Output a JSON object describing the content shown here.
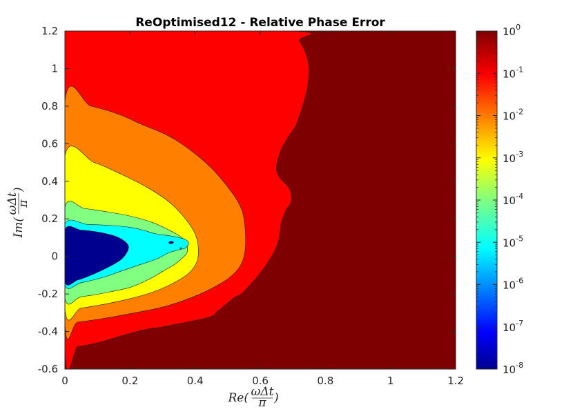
{
  "chart_data": {
    "type": "contour",
    "title": "ReOptimised12 - Relative Phase Error",
    "xlabel": {
      "base": "Re(",
      "numerator": "ωΔt",
      "denominator": "π",
      "close": ")"
    },
    "ylabel": {
      "base": "Im(",
      "numerator": "ωΔt",
      "denominator": "π",
      "close": ")"
    },
    "xlim": [
      0,
      1.2
    ],
    "ylim": [
      -0.6,
      1.2
    ],
    "x_ticks": [
      "0",
      "0.2",
      "0.4",
      "0.6",
      "0.8",
      "1",
      "1.2"
    ],
    "y_ticks": [
      "-0.6",
      "-0.4",
      "-0.2",
      "0",
      "0.2",
      "0.4",
      "0.6",
      "0.8",
      "1",
      "1.2"
    ],
    "colorbar": {
      "scale": "log",
      "range": [
        1e-08,
        1
      ],
      "tick_labels": [
        {
          "base": "10",
          "exp": "-8"
        },
        {
          "base": "10",
          "exp": "-7"
        },
        {
          "base": "10",
          "exp": "-6"
        },
        {
          "base": "10",
          "exp": "-5"
        },
        {
          "base": "10",
          "exp": "-4"
        },
        {
          "base": "10",
          "exp": "-3"
        },
        {
          "base": "10",
          "exp": "-2"
        },
        {
          "base": "10",
          "exp": "-1"
        },
        {
          "base": "10",
          "exp": "0"
        }
      ],
      "colormap": "jet"
    },
    "levels": [
      {
        "level": "1e-1 to 1",
        "color": "#7f0000",
        "region": [
          [
            0,
            -0.6
          ],
          [
            1.2,
            -0.6
          ],
          [
            1.2,
            1.2
          ],
          [
            0,
            1.2
          ]
        ]
      },
      {
        "level": "1e-2 to 1e-1",
        "color": "#ff0000",
        "region": [
          [
            0,
            -0.49
          ],
          [
            0.04,
            -0.48
          ],
          [
            0.1,
            -0.46
          ],
          [
            0.2,
            -0.41
          ],
          [
            0.26,
            -0.385
          ],
          [
            0.3,
            -0.375
          ],
          [
            0.44,
            -0.325
          ],
          [
            0.47,
            -0.29
          ],
          [
            0.52,
            -0.22
          ],
          [
            0.545,
            -0.195
          ],
          [
            0.59,
            -0.11
          ],
          [
            0.62,
            -0.04
          ],
          [
            0.65,
            0.05
          ],
          [
            0.66,
            0.12
          ],
          [
            0.665,
            0.18
          ],
          [
            0.68,
            0.25
          ],
          [
            0.695,
            0.29
          ],
          [
            0.69,
            0.36
          ],
          [
            0.66,
            0.42
          ],
          [
            0.65,
            0.47
          ],
          [
            0.66,
            0.55
          ],
          [
            0.68,
            0.62
          ],
          [
            0.71,
            0.7
          ],
          [
            0.73,
            0.8
          ],
          [
            0.745,
            0.9
          ],
          [
            0.75,
            1.0
          ],
          [
            0.74,
            1.08
          ],
          [
            0.72,
            1.15
          ],
          [
            0.7,
            1.2
          ],
          [
            0,
            1.2
          ]
        ]
      },
      {
        "level": "1e-3 to 1e-2",
        "color": "#ff8000",
        "region": [
          [
            0,
            -0.355
          ],
          [
            0.04,
            -0.35
          ],
          [
            0.12,
            -0.33
          ],
          [
            0.2,
            -0.305
          ],
          [
            0.3,
            -0.27
          ],
          [
            0.38,
            -0.225
          ],
          [
            0.44,
            -0.18
          ],
          [
            0.5,
            -0.12
          ],
          [
            0.535,
            -0.06
          ],
          [
            0.55,
            0.0
          ],
          [
            0.555,
            0.08
          ],
          [
            0.55,
            0.2
          ],
          [
            0.535,
            0.28
          ],
          [
            0.5,
            0.37
          ],
          [
            0.45,
            0.47
          ],
          [
            0.39,
            0.56
          ],
          [
            0.32,
            0.64
          ],
          [
            0.24,
            0.7
          ],
          [
            0.16,
            0.76
          ],
          [
            0.08,
            0.8
          ],
          [
            0,
            0.825
          ]
        ]
      },
      {
        "level": "1e-4 to 1e-3",
        "color": "#ffff00",
        "region": [
          [
            0,
            -0.28
          ],
          [
            0.05,
            -0.275
          ],
          [
            0.12,
            -0.255
          ],
          [
            0.2,
            -0.225
          ],
          [
            0.27,
            -0.19
          ],
          [
            0.33,
            -0.145
          ],
          [
            0.38,
            -0.09
          ],
          [
            0.405,
            -0.03
          ],
          [
            0.41,
            0.04
          ],
          [
            0.4,
            0.12
          ],
          [
            0.37,
            0.2
          ],
          [
            0.32,
            0.29
          ],
          [
            0.25,
            0.37
          ],
          [
            0.17,
            0.44
          ],
          [
            0.09,
            0.5
          ],
          [
            0,
            0.535
          ]
        ]
      },
      {
        "level": "1e-5 to 1e-4",
        "color": "#80ff80",
        "region": [
          [
            0,
            -0.22
          ],
          [
            0.05,
            -0.215
          ],
          [
            0.12,
            -0.195
          ],
          [
            0.2,
            -0.165
          ],
          [
            0.26,
            -0.12
          ],
          [
            0.3,
            -0.08
          ],
          [
            0.335,
            -0.045
          ],
          [
            0.36,
            -0.01
          ],
          [
            0.375,
            0.02
          ],
          [
            0.375,
            0.06
          ],
          [
            0.36,
            0.1
          ],
          [
            0.32,
            0.14
          ],
          [
            0.27,
            0.18
          ],
          [
            0.2,
            0.215
          ],
          [
            0.12,
            0.24
          ],
          [
            0.06,
            0.255
          ],
          [
            0,
            0.26
          ]
        ]
      },
      {
        "level": "1e-6 to 1e-5",
        "color": "#00ffff",
        "region": [
          [
            0,
            -0.15
          ],
          [
            0.05,
            -0.14
          ],
          [
            0.12,
            -0.11
          ],
          [
            0.17,
            -0.08
          ],
          [
            0.22,
            -0.05
          ],
          [
            0.28,
            -0.015
          ],
          [
            0.32,
            0.02
          ],
          [
            0.35,
            0.035
          ],
          [
            0.37,
            0.045
          ],
          [
            0.38,
            0.07
          ],
          [
            0.37,
            0.09
          ],
          [
            0.35,
            0.1
          ],
          [
            0.32,
            0.11
          ],
          [
            0.28,
            0.12
          ],
          [
            0.24,
            0.14
          ],
          [
            0.2,
            0.155
          ],
          [
            0.14,
            0.165
          ],
          [
            0.07,
            0.17
          ],
          [
            0,
            0.17
          ]
        ]
      },
      {
        "level": "1e-7 to 1e-6",
        "color": "#00008f",
        "region": [
          [
            0,
            -0.135
          ],
          [
            0.04,
            -0.125
          ],
          [
            0.08,
            -0.1
          ],
          [
            0.13,
            -0.06
          ],
          [
            0.17,
            -0.02
          ],
          [
            0.19,
            0.02
          ],
          [
            0.195,
            0.055
          ],
          [
            0.18,
            0.085
          ],
          [
            0.15,
            0.11
          ],
          [
            0.1,
            0.13
          ],
          [
            0.05,
            0.14
          ],
          [
            0,
            0.14
          ]
        ]
      },
      {
        "level": "1e-7 to 1e-6",
        "color": "#00008f",
        "region": [
          [
            0.3195,
            0.075
          ],
          [
            0.324,
            0.08
          ],
          [
            0.3315,
            0.079
          ],
          [
            0.333,
            0.072
          ],
          [
            0.3265,
            0.068
          ],
          [
            0.32,
            0.07
          ]
        ]
      },
      {
        "level": "1e-7 to 1e-6",
        "color": "#00008f",
        "region": [
          [
            0.3535,
            0.043
          ],
          [
            0.3555,
            0.047
          ],
          [
            0.358,
            0.045
          ],
          [
            0.3565,
            0.041
          ]
        ]
      }
    ]
  }
}
